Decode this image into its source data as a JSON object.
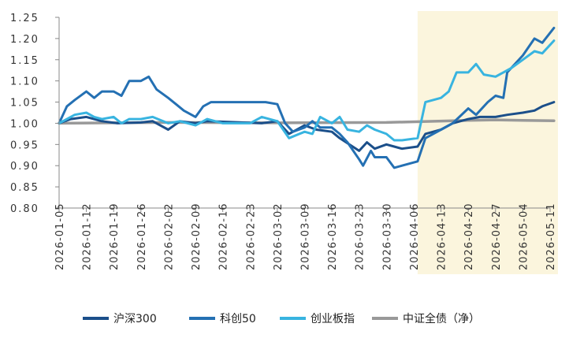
{
  "chart_data": {
    "type": "line",
    "title": "",
    "xlabel": "",
    "ylabel": "",
    "ylim": [
      0.8,
      1.25
    ],
    "yticks": [
      "0.80",
      "0.85",
      "0.90",
      "0.95",
      "1.00",
      "1.05",
      "1.10",
      "1.15",
      "1.20",
      "1.25"
    ],
    "xticks": [
      "2026-01-05",
      "2026-01-12",
      "2026-01-19",
      "2026-01-26",
      "2026-02-02",
      "2026-02-09",
      "2026-02-16",
      "2026-02-23",
      "2026-03-02",
      "2026-03-09",
      "2026-03-16",
      "2026-03-23",
      "2026-03-30",
      "2026-04-06",
      "2026-04-13",
      "2026-04-20",
      "2026-04-27",
      "2026-05-04",
      "2026-05-11"
    ],
    "grid": false,
    "legend": "bottom",
    "highlight_range": [
      "2026-04-07",
      "2026-05-12"
    ],
    "highlight_color": "#fbf5dd",
    "series": [
      {
        "name": "沪深300",
        "color": "#1b4f8a",
        "points": [
          [
            "2026-01-05",
            1.0
          ],
          [
            "2026-01-08",
            1.01
          ],
          [
            "2026-01-12",
            1.015
          ],
          [
            "2026-01-16",
            1.005
          ],
          [
            "2026-01-20",
            1.0
          ],
          [
            "2026-01-26",
            1.002
          ],
          [
            "2026-01-29",
            1.005
          ],
          [
            "2026-02-02",
            0.985
          ],
          [
            "2026-02-05",
            1.005
          ],
          [
            "2026-02-09",
            1.0
          ],
          [
            "2026-02-12",
            1.005
          ],
          [
            "2026-02-26",
            1.0
          ],
          [
            "2026-03-02",
            1.005
          ],
          [
            "2026-03-05",
            0.975
          ],
          [
            "2026-03-09",
            0.995
          ],
          [
            "2026-03-12",
            0.985
          ],
          [
            "2026-03-16",
            0.98
          ],
          [
            "2026-03-18",
            0.965
          ],
          [
            "2026-03-23",
            0.935
          ],
          [
            "2026-03-25",
            0.955
          ],
          [
            "2026-03-27",
            0.94
          ],
          [
            "2026-03-30",
            0.95
          ],
          [
            "2026-04-01",
            0.945
          ],
          [
            "2026-04-03",
            0.94
          ],
          [
            "2026-04-07",
            0.945
          ],
          [
            "2026-04-09",
            0.975
          ],
          [
            "2026-04-13",
            0.985
          ],
          [
            "2026-04-16",
            1.0
          ],
          [
            "2026-04-20",
            1.01
          ],
          [
            "2026-04-23",
            1.015
          ],
          [
            "2026-04-27",
            1.015
          ],
          [
            "2026-04-30",
            1.02
          ],
          [
            "2026-05-04",
            1.025
          ],
          [
            "2026-05-07",
            1.03
          ],
          [
            "2026-05-09",
            1.04
          ],
          [
            "2026-05-12",
            1.05
          ]
        ]
      },
      {
        "name": "科创50",
        "color": "#2470b3",
        "points": [
          [
            "2026-01-05",
            1.0
          ],
          [
            "2026-01-07",
            1.04
          ],
          [
            "2026-01-09",
            1.055
          ],
          [
            "2026-01-12",
            1.075
          ],
          [
            "2026-01-14",
            1.06
          ],
          [
            "2026-01-16",
            1.075
          ],
          [
            "2026-01-19",
            1.075
          ],
          [
            "2026-01-21",
            1.065
          ],
          [
            "2026-01-23",
            1.1
          ],
          [
            "2026-01-26",
            1.1
          ],
          [
            "2026-01-28",
            1.11
          ],
          [
            "2026-01-30",
            1.08
          ],
          [
            "2026-02-02",
            1.06
          ],
          [
            "2026-02-04",
            1.045
          ],
          [
            "2026-02-06",
            1.03
          ],
          [
            "2026-02-09",
            1.015
          ],
          [
            "2026-02-11",
            1.04
          ],
          [
            "2026-02-13",
            1.05
          ],
          [
            "2026-02-16",
            1.05
          ],
          [
            "2026-02-27",
            1.05
          ],
          [
            "2026-03-02",
            1.045
          ],
          [
            "2026-03-04",
            1.0
          ],
          [
            "2026-03-06",
            0.98
          ],
          [
            "2026-03-09",
            0.99
          ],
          [
            "2026-03-11",
            1.005
          ],
          [
            "2026-03-13",
            0.99
          ],
          [
            "2026-03-16",
            0.99
          ],
          [
            "2026-03-18",
            0.975
          ],
          [
            "2026-03-20",
            0.955
          ],
          [
            "2026-03-23",
            0.915
          ],
          [
            "2026-03-24",
            0.9
          ],
          [
            "2026-03-26",
            0.935
          ],
          [
            "2026-03-27",
            0.92
          ],
          [
            "2026-03-30",
            0.92
          ],
          [
            "2026-04-01",
            0.895
          ],
          [
            "2026-04-03",
            0.9
          ],
          [
            "2026-04-07",
            0.91
          ],
          [
            "2026-04-09",
            0.965
          ],
          [
            "2026-04-13",
            0.985
          ],
          [
            "2026-04-16",
            1.0
          ],
          [
            "2026-04-20",
            1.035
          ],
          [
            "2026-04-22",
            1.02
          ],
          [
            "2026-04-25",
            1.05
          ],
          [
            "2026-04-27",
            1.065
          ],
          [
            "2026-04-29",
            1.06
          ],
          [
            "2026-04-30",
            1.12
          ],
          [
            "2026-05-04",
            1.16
          ],
          [
            "2026-05-07",
            1.2
          ],
          [
            "2026-05-09",
            1.19
          ],
          [
            "2026-05-12",
            1.225
          ]
        ]
      },
      {
        "name": "创业板指",
        "color": "#38b4e0",
        "points": [
          [
            "2026-01-05",
            1.0
          ],
          [
            "2026-01-09",
            1.02
          ],
          [
            "2026-01-12",
            1.025
          ],
          [
            "2026-01-14",
            1.015
          ],
          [
            "2026-01-16",
            1.01
          ],
          [
            "2026-01-19",
            1.015
          ],
          [
            "2026-01-21",
            1.0
          ],
          [
            "2026-01-23",
            1.01
          ],
          [
            "2026-01-26",
            1.01
          ],
          [
            "2026-01-29",
            1.015
          ],
          [
            "2026-02-02",
            1.0
          ],
          [
            "2026-02-05",
            1.005
          ],
          [
            "2026-02-09",
            0.995
          ],
          [
            "2026-02-12",
            1.01
          ],
          [
            "2026-02-16",
            1.0
          ],
          [
            "2026-02-23",
            1.0
          ],
          [
            "2026-02-26",
            1.015
          ],
          [
            "2026-03-02",
            1.005
          ],
          [
            "2026-03-05",
            0.965
          ],
          [
            "2026-03-09",
            0.98
          ],
          [
            "2026-03-11",
            0.975
          ],
          [
            "2026-03-13",
            1.015
          ],
          [
            "2026-03-16",
            1.0
          ],
          [
            "2026-03-18",
            1.015
          ],
          [
            "2026-03-20",
            0.985
          ],
          [
            "2026-03-23",
            0.98
          ],
          [
            "2026-03-25",
            0.995
          ],
          [
            "2026-03-27",
            0.985
          ],
          [
            "2026-03-30",
            0.975
          ],
          [
            "2026-04-01",
            0.96
          ],
          [
            "2026-04-03",
            0.96
          ],
          [
            "2026-04-07",
            0.965
          ],
          [
            "2026-04-09",
            1.05
          ],
          [
            "2026-04-13",
            1.06
          ],
          [
            "2026-04-15",
            1.075
          ],
          [
            "2026-04-17",
            1.12
          ],
          [
            "2026-04-20",
            1.12
          ],
          [
            "2026-04-22",
            1.14
          ],
          [
            "2026-04-24",
            1.115
          ],
          [
            "2026-04-27",
            1.11
          ],
          [
            "2026-04-29",
            1.12
          ],
          [
            "2026-05-01",
            1.13
          ],
          [
            "2026-05-04",
            1.15
          ],
          [
            "2026-05-07",
            1.17
          ],
          [
            "2026-05-09",
            1.165
          ],
          [
            "2026-05-12",
            1.195
          ]
        ]
      },
      {
        "name": "中证全债（净）",
        "color": "#999999",
        "points": [
          [
            "2026-01-05",
            1.0
          ],
          [
            "2026-02-02",
            1.002
          ],
          [
            "2026-03-02",
            1.001
          ],
          [
            "2026-03-30",
            1.002
          ],
          [
            "2026-04-20",
            1.007
          ],
          [
            "2026-04-27",
            1.008
          ],
          [
            "2026-05-04",
            1.007
          ],
          [
            "2026-05-12",
            1.006
          ]
        ]
      }
    ]
  }
}
